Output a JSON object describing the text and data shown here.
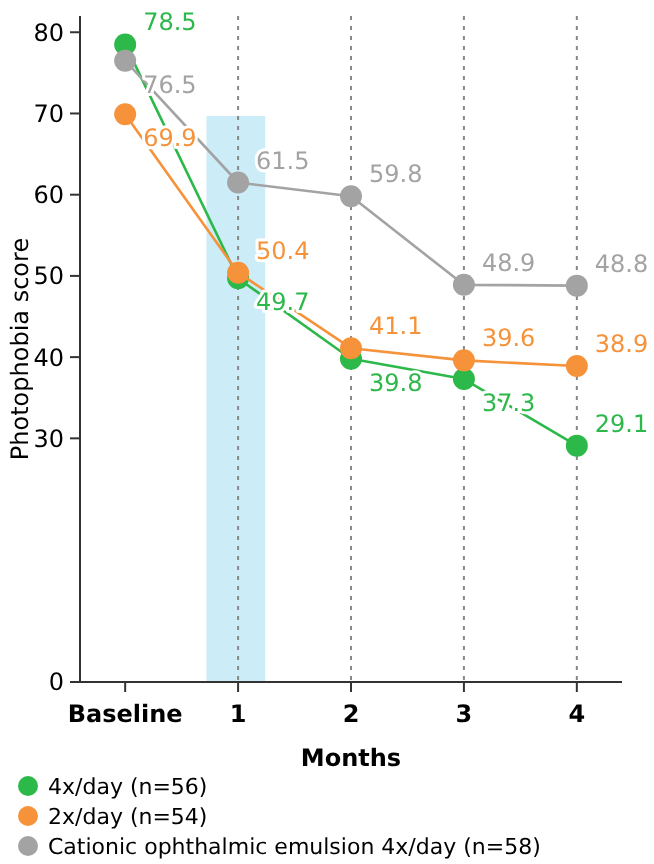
{
  "chart_data": {
    "type": "line",
    "xlabel": "Months",
    "ylabel": "Photophobia score",
    "x": [
      0,
      1,
      2,
      3,
      4
    ],
    "xlim": [
      -0.4,
      4.4
    ],
    "xticks": [
      {
        "value": 0,
        "label": "Baseline"
      },
      1,
      2,
      3,
      4
    ],
    "ylim": [
      0,
      82
    ],
    "yticks": [
      0,
      30,
      40,
      50,
      60,
      70,
      80
    ],
    "series": [
      {
        "name": "4x/day (n=56)",
        "color": "#2db84a",
        "values": [
          78.5,
          49.7,
          39.8,
          37.3,
          29.1
        ]
      },
      {
        "name": "2x/day (n=54)",
        "color": "#f5923a",
        "values": [
          69.9,
          50.4,
          41.1,
          39.6,
          38.9
        ]
      },
      {
        "name": "Cationic ophthalmic emulsion 4x/day (n=58)",
        "color": "#a3a3a3",
        "values": [
          76.5,
          61.5,
          59.8,
          48.9,
          48.8
        ]
      }
    ],
    "bands": [
      {
        "axis": "x",
        "from": 0.72,
        "to": 1.24,
        "color": "#bfe7f5"
      }
    ],
    "grid": "x",
    "marker": "circle",
    "line_style": "solid",
    "data_labels": true,
    "legend": "bottom"
  }
}
